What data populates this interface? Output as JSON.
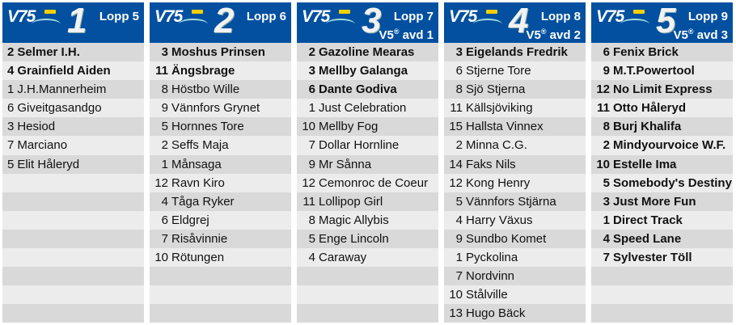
{
  "brand": "V75",
  "avd_label": "V5",
  "columns": [
    {
      "number": "1",
      "lopp": "Lopp 5",
      "sub": "",
      "bold": 2,
      "horses": [
        [
          "2",
          "Selmer I.H."
        ],
        [
          "4",
          "Grainfield Aiden"
        ],
        [
          "1",
          "J.H.Mannerheim"
        ],
        [
          "6",
          "Giveitgasandgo"
        ],
        [
          "3",
          "Hesiod"
        ],
        [
          "7",
          "Marciano"
        ],
        [
          "5",
          "Elit Håleryd"
        ]
      ]
    },
    {
      "number": "2",
      "lopp": "Lopp 6",
      "sub": "",
      "bold": 2,
      "horses": [
        [
          "3",
          "Moshus Prinsen"
        ],
        [
          "11",
          "Ängsbrage"
        ],
        [
          "8",
          "Höstbo Wille"
        ],
        [
          "9",
          "Vännfors Grynet"
        ],
        [
          "5",
          "Hornnes Tore"
        ],
        [
          "2",
          "Seffs Maja"
        ],
        [
          "1",
          "Månsaga"
        ],
        [
          "12",
          "Ravn Kiro"
        ],
        [
          "4",
          "Tåga Ryker"
        ],
        [
          "6",
          "Eldgrej"
        ],
        [
          "7",
          "Risåvinnie"
        ],
        [
          "10",
          "Rötungen"
        ]
      ]
    },
    {
      "number": "3",
      "lopp": "Lopp 7",
      "sub": "avd 1",
      "bold": 3,
      "horses": [
        [
          "2",
          "Gazoline Mearas"
        ],
        [
          "3",
          "Mellby Galanga"
        ],
        [
          "6",
          "Dante Godiva"
        ],
        [
          "1",
          "Just Celebration"
        ],
        [
          "10",
          "Mellby Fog"
        ],
        [
          "7",
          "Dollar Hornline"
        ],
        [
          "9",
          "Mr Sånna"
        ],
        [
          "12",
          "Cemonroc de Coeur"
        ],
        [
          "11",
          "Lollipop Girl"
        ],
        [
          "8",
          "Magic Allybis"
        ],
        [
          "5",
          "Enge Lincoln"
        ],
        [
          "4",
          "Caraway"
        ]
      ]
    },
    {
      "number": "4",
      "lopp": "Lopp 8",
      "sub": "avd 2",
      "bold": 1,
      "horses": [
        [
          "3",
          "Eigelands Fredrik"
        ],
        [
          "6",
          "Stjerne Tore"
        ],
        [
          "8",
          "Sjö Stjerna"
        ],
        [
          "11",
          "Källsjöviking"
        ],
        [
          "15",
          "Hallsta Vinnex"
        ],
        [
          "2",
          "Minna C.G."
        ],
        [
          "14",
          "Faks Nils"
        ],
        [
          "12",
          "Kong Henry"
        ],
        [
          "5",
          "Vännfors Stjärna"
        ],
        [
          "4",
          "Harry Växus"
        ],
        [
          "9",
          "Sundbo Komet"
        ],
        [
          "1",
          "Pyckolina"
        ],
        [
          "7",
          "Nordvinn"
        ],
        [
          "10",
          "Stålville"
        ],
        [
          "13",
          "Hugo Bäck"
        ]
      ]
    },
    {
      "number": "5",
      "lopp": "Lopp 9",
      "sub": "avd 3",
      "bold": 12,
      "horses": [
        [
          "6",
          "Fenix Brick"
        ],
        [
          "9",
          "M.T.Powertool"
        ],
        [
          "12",
          "No Limit Express"
        ],
        [
          "11",
          "Otto Håleryd"
        ],
        [
          "8",
          "Burj Khalifa"
        ],
        [
          "2",
          "Mindyourvoice W.F."
        ],
        [
          "10",
          "Estelle Ima"
        ],
        [
          "5",
          "Somebody's Destiny"
        ],
        [
          "3",
          "Just More Fun"
        ],
        [
          "1",
          "Direct Track"
        ],
        [
          "4",
          "Speed Lane"
        ],
        [
          "7",
          "Sylvester Töll"
        ]
      ]
    }
  ]
}
